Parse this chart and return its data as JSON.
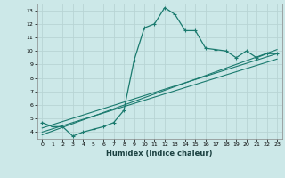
{
  "xlabel": "Humidex (Indice chaleur)",
  "ylabel": "",
  "background_color": "#cce8e8",
  "grid_color": "#b8d4d4",
  "line_color": "#1a7a6e",
  "xlim": [
    -0.5,
    23.5
  ],
  "ylim": [
    3.5,
    13.5
  ],
  "xticks": [
    0,
    1,
    2,
    3,
    4,
    5,
    6,
    7,
    8,
    9,
    10,
    11,
    12,
    13,
    14,
    15,
    16,
    17,
    18,
    19,
    20,
    21,
    22,
    23
  ],
  "yticks": [
    4,
    5,
    6,
    7,
    8,
    9,
    10,
    11,
    12,
    13
  ],
  "series1_x": [
    0,
    1,
    2,
    3,
    4,
    5,
    6,
    7,
    8,
    9,
    10,
    11,
    12,
    13,
    14,
    15,
    16,
    17,
    18,
    19,
    20,
    21,
    22,
    23
  ],
  "series1_y": [
    4.7,
    4.4,
    4.4,
    3.7,
    4.0,
    4.2,
    4.4,
    4.7,
    5.6,
    9.3,
    11.7,
    12.0,
    13.2,
    12.7,
    11.5,
    11.5,
    10.2,
    10.1,
    10.0,
    9.5,
    10.0,
    9.5,
    9.8,
    9.8
  ],
  "series2_x": [
    0,
    23
  ],
  "series2_y": [
    4.3,
    9.8
  ],
  "series3_x": [
    0,
    23
  ],
  "series3_y": [
    4.0,
    9.4
  ],
  "series4_x": [
    0,
    23
  ],
  "series4_y": [
    3.8,
    10.1
  ]
}
